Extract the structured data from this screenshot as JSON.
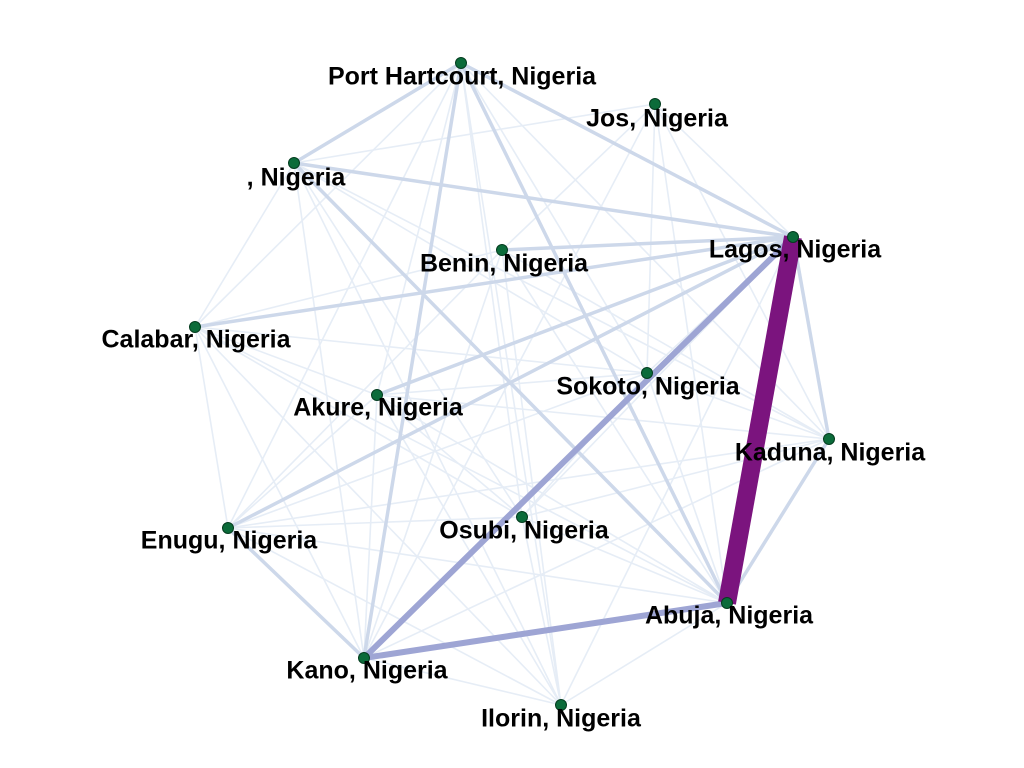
{
  "colors": {
    "node_fill": "#0b6b3a",
    "node_stroke": "#043d1f",
    "edge_faint": "#e6edf6",
    "edge_light": "#cdd8ea",
    "edge_medium": "#9ea5d4",
    "edge_strong": "#7b147e",
    "label": "#000000"
  },
  "nodes": [
    {
      "id": "port_hartcourt",
      "label": "Port Hartcourt, Nigeria"
    },
    {
      "id": "jos",
      "label": "Jos, Nigeria"
    },
    {
      "id": "blank",
      "label": ", Nigeria"
    },
    {
      "id": "lagos",
      "label": "Lagos, Nigeria"
    },
    {
      "id": "benin",
      "label": "Benin, Nigeria"
    },
    {
      "id": "calabar",
      "label": "Calabar, Nigeria"
    },
    {
      "id": "sokoto",
      "label": "Sokoto, Nigeria"
    },
    {
      "id": "akure",
      "label": "Akure, Nigeria"
    },
    {
      "id": "kaduna",
      "label": "Kaduna, Nigeria"
    },
    {
      "id": "enugu",
      "label": "Enugu, Nigeria"
    },
    {
      "id": "osubi",
      "label": "Osubi, Nigeria"
    },
    {
      "id": "abuja",
      "label": "Abuja, Nigeria"
    },
    {
      "id": "kano",
      "label": "Kano, Nigeria"
    },
    {
      "id": "ilorin",
      "label": "Ilorin, Nigeria"
    }
  ],
  "edges": [
    {
      "source": "lagos",
      "target": "abuja",
      "weight": 10
    },
    {
      "source": "lagos",
      "target": "kano",
      "weight": 4
    },
    {
      "source": "kano",
      "target": "abuja",
      "weight": 4
    },
    {
      "source": "lagos",
      "target": "benin",
      "weight": 2
    },
    {
      "source": "lagos",
      "target": "blank",
      "weight": 2
    },
    {
      "source": "lagos",
      "target": "calabar",
      "weight": 2
    },
    {
      "source": "lagos",
      "target": "port_hartcourt",
      "weight": 2
    },
    {
      "source": "lagos",
      "target": "enugu",
      "weight": 2
    },
    {
      "source": "lagos",
      "target": "akure",
      "weight": 2
    },
    {
      "source": "lagos",
      "target": "kaduna",
      "weight": 2
    },
    {
      "source": "lagos",
      "target": "jos",
      "weight": 1
    },
    {
      "source": "lagos",
      "target": "sokoto",
      "weight": 1
    },
    {
      "source": "lagos",
      "target": "osubi",
      "weight": 1
    },
    {
      "source": "lagos",
      "target": "ilorin",
      "weight": 1
    },
    {
      "source": "abuja",
      "target": "kaduna",
      "weight": 2
    },
    {
      "source": "abuja",
      "target": "blank",
      "weight": 2
    },
    {
      "source": "abuja",
      "target": "port_hartcourt",
      "weight": 2
    },
    {
      "source": "abuja",
      "target": "osubi",
      "weight": 1
    },
    {
      "source": "abuja",
      "target": "sokoto",
      "weight": 1
    },
    {
      "source": "abuja",
      "target": "calabar",
      "weight": 1
    },
    {
      "source": "abuja",
      "target": "enugu",
      "weight": 1
    },
    {
      "source": "abuja",
      "target": "akure",
      "weight": 1
    },
    {
      "source": "abuja",
      "target": "benin",
      "weight": 1
    },
    {
      "source": "abuja",
      "target": "ilorin",
      "weight": 1
    },
    {
      "source": "abuja",
      "target": "jos",
      "weight": 1
    },
    {
      "source": "kano",
      "target": "port_hartcourt",
      "weight": 2
    },
    {
      "source": "kano",
      "target": "enugu",
      "weight": 2
    },
    {
      "source": "kano",
      "target": "calabar",
      "weight": 1
    },
    {
      "source": "kano",
      "target": "blank",
      "weight": 1
    },
    {
      "source": "kano",
      "target": "kaduna",
      "weight": 1
    },
    {
      "source": "kano",
      "target": "ilorin",
      "weight": 1
    },
    {
      "source": "kano",
      "target": "benin",
      "weight": 1
    },
    {
      "source": "kano",
      "target": "akure",
      "weight": 1
    },
    {
      "source": "kano",
      "target": "jos",
      "weight": 1
    },
    {
      "source": "port_hartcourt",
      "target": "blank",
      "weight": 2
    },
    {
      "source": "port_hartcourt",
      "target": "calabar",
      "weight": 1
    },
    {
      "source": "port_hartcourt",
      "target": "kaduna",
      "weight": 1
    },
    {
      "source": "port_hartcourt",
      "target": "akure",
      "weight": 1
    },
    {
      "source": "port_hartcourt",
      "target": "osubi",
      "weight": 1
    },
    {
      "source": "port_hartcourt",
      "target": "sokoto",
      "weight": 1
    },
    {
      "source": "port_hartcourt",
      "target": "enugu",
      "weight": 1
    },
    {
      "source": "port_hartcourt",
      "target": "ilorin",
      "weight": 1
    },
    {
      "source": "blank",
      "target": "calabar",
      "weight": 1
    },
    {
      "source": "blank",
      "target": "kaduna",
      "weight": 1
    },
    {
      "source": "blank",
      "target": "osubi",
      "weight": 1
    },
    {
      "source": "blank",
      "target": "sokoto",
      "weight": 1
    },
    {
      "source": "blank",
      "target": "ilorin",
      "weight": 1
    },
    {
      "source": "benin",
      "target": "calabar",
      "weight": 1
    },
    {
      "source": "benin",
      "target": "kaduna",
      "weight": 1
    },
    {
      "source": "benin",
      "target": "enugu",
      "weight": 1
    },
    {
      "source": "benin",
      "target": "ilorin",
      "weight": 1
    },
    {
      "source": "calabar",
      "target": "sokoto",
      "weight": 1
    },
    {
      "source": "calabar",
      "target": "osubi",
      "weight": 1
    },
    {
      "source": "calabar",
      "target": "akure",
      "weight": 1
    },
    {
      "source": "calabar",
      "target": "enugu",
      "weight": 1
    },
    {
      "source": "calabar",
      "target": "ilorin",
      "weight": 1
    },
    {
      "source": "sokoto",
      "target": "kaduna",
      "weight": 1
    },
    {
      "source": "sokoto",
      "target": "osubi",
      "weight": 1
    },
    {
      "source": "sokoto",
      "target": "akure",
      "weight": 1
    },
    {
      "source": "sokoto",
      "target": "jos",
      "weight": 1
    },
    {
      "source": "sokoto",
      "target": "enugu",
      "weight": 1
    },
    {
      "source": "akure",
      "target": "kaduna",
      "weight": 1
    },
    {
      "source": "akure",
      "target": "osubi",
      "weight": 1
    },
    {
      "source": "akure",
      "target": "enugu",
      "weight": 1
    },
    {
      "source": "akure",
      "target": "ilorin",
      "weight": 1
    },
    {
      "source": "kaduna",
      "target": "osubi",
      "weight": 1
    },
    {
      "source": "kaduna",
      "target": "jos",
      "weight": 1
    },
    {
      "source": "kaduna",
      "target": "enugu",
      "weight": 1
    },
    {
      "source": "osubi",
      "target": "enugu",
      "weight": 1
    },
    {
      "source": "osubi",
      "target": "ilorin",
      "weight": 1
    },
    {
      "source": "jos",
      "target": "benin",
      "weight": 1
    },
    {
      "source": "jos",
      "target": "blank",
      "weight": 1
    },
    {
      "source": "enugu",
      "target": "ilorin",
      "weight": 1
    }
  ]
}
